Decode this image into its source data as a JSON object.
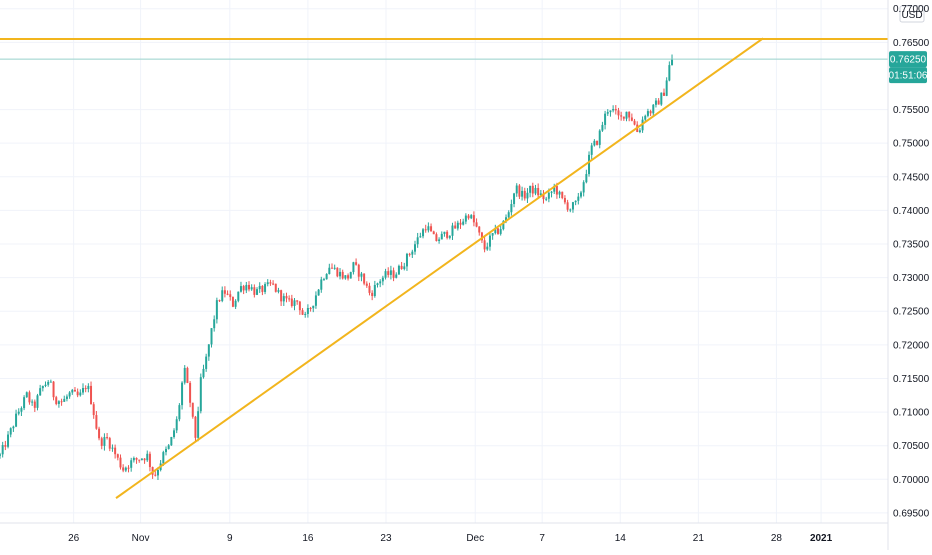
{
  "chart_data": {
    "type": "candlestick",
    "currency_label": "USD",
    "y_ticks": [
      "0.77000",
      "0.76500",
      "0.76250",
      "0.75500",
      "0.75000",
      "0.74500",
      "0.74000",
      "0.73500",
      "0.73000",
      "0.72500",
      "0.72000",
      "0.71500",
      "0.71000",
      "0.70500",
      "0.70000",
      "0.69500"
    ],
    "y_tick_values": [
      0.77,
      0.765,
      0.7625,
      0.755,
      0.75,
      0.745,
      0.74,
      0.735,
      0.73,
      0.725,
      0.72,
      0.715,
      0.71,
      0.705,
      0.7,
      0.695
    ],
    "ylim": [
      0.6935,
      0.7713
    ],
    "x_ticks": [
      "26",
      "Nov",
      "9",
      "16",
      "23",
      "Dec",
      "7",
      "14",
      "21",
      "28",
      "2021"
    ],
    "x_tick_days": [
      -6,
      0,
      8,
      15,
      22,
      30,
      36,
      43,
      50,
      57,
      61
    ],
    "xlim": [
      -12.6,
      67
    ],
    "current_price": "0.76250",
    "countdown": "01:51:06",
    "current_price_value": 0.7625,
    "colors": {
      "up": "#26a69a",
      "down": "#ef5350",
      "trendline": "#f2b51d",
      "price_label_bg": "#26a69a",
      "price_line": "#9ad3cc",
      "grid": "#f0f3fa",
      "axis_text": "#131722"
    },
    "horizontal_line": {
      "price": 0.7655
    },
    "trendline": {
      "from": {
        "day": -2.2,
        "price": 0.6972
      },
      "to": {
        "day": 55.8,
        "price": 0.7656
      }
    },
    "anchors": [
      [
        -12.6,
        0.7035
      ],
      [
        -11.8,
        0.7065
      ],
      [
        -11.1,
        0.7095
      ],
      [
        -10.2,
        0.7125
      ],
      [
        -9.6,
        0.7105
      ],
      [
        -8.9,
        0.7135
      ],
      [
        -8.2,
        0.7148
      ],
      [
        -7.7,
        0.712
      ],
      [
        -7.0,
        0.7115
      ],
      [
        -6.3,
        0.7128
      ],
      [
        -5.5,
        0.7122
      ],
      [
        -4.8,
        0.7142
      ],
      [
        -4.3,
        0.7108
      ],
      [
        -3.7,
        0.7055
      ],
      [
        -3.0,
        0.706
      ],
      [
        -2.2,
        0.7035
      ],
      [
        -1.6,
        0.7015
      ],
      [
        -0.9,
        0.7025
      ],
      [
        -0.3,
        0.703
      ],
      [
        0.6,
        0.7035
      ],
      [
        1.2,
        0.7003
      ],
      [
        2.0,
        0.7035
      ],
      [
        2.6,
        0.705
      ],
      [
        3.3,
        0.709
      ],
      [
        3.9,
        0.7165
      ],
      [
        4.4,
        0.712
      ],
      [
        4.9,
        0.706
      ],
      [
        5.4,
        0.7145
      ],
      [
        5.9,
        0.718
      ],
      [
        6.4,
        0.7225
      ],
      [
        6.9,
        0.7265
      ],
      [
        7.5,
        0.728
      ],
      [
        8.3,
        0.726
      ],
      [
        8.9,
        0.7285
      ],
      [
        9.6,
        0.729
      ],
      [
        10.3,
        0.7278
      ],
      [
        11.0,
        0.7283
      ],
      [
        11.8,
        0.729
      ],
      [
        12.5,
        0.7273
      ],
      [
        13.3,
        0.7262
      ],
      [
        14.1,
        0.7265
      ],
      [
        14.7,
        0.7238
      ],
      [
        15.5,
        0.7265
      ],
      [
        16.2,
        0.7296
      ],
      [
        16.9,
        0.7318
      ],
      [
        17.7,
        0.7308
      ],
      [
        18.5,
        0.7298
      ],
      [
        19.1,
        0.7318
      ],
      [
        19.8,
        0.7302
      ],
      [
        20.6,
        0.7275
      ],
      [
        21.4,
        0.7296
      ],
      [
        22.1,
        0.7305
      ],
      [
        22.8,
        0.7305
      ],
      [
        23.5,
        0.732
      ],
      [
        24.2,
        0.7338
      ],
      [
        25.0,
        0.7362
      ],
      [
        25.6,
        0.7378
      ],
      [
        26.4,
        0.7355
      ],
      [
        27.1,
        0.7362
      ],
      [
        27.9,
        0.737
      ],
      [
        28.6,
        0.738
      ],
      [
        29.4,
        0.7395
      ],
      [
        30.1,
        0.7375
      ],
      [
        30.8,
        0.7342
      ],
      [
        31.5,
        0.7362
      ],
      [
        32.2,
        0.7372
      ],
      [
        32.9,
        0.7392
      ],
      [
        33.6,
        0.7435
      ],
      [
        34.3,
        0.742
      ],
      [
        35.0,
        0.7432
      ],
      [
        35.7,
        0.7425
      ],
      [
        36.4,
        0.7415
      ],
      [
        37.1,
        0.7435
      ],
      [
        37.8,
        0.7415
      ],
      [
        38.5,
        0.7403
      ],
      [
        39.2,
        0.7412
      ],
      [
        39.9,
        0.7455
      ],
      [
        40.4,
        0.7492
      ],
      [
        41.0,
        0.7505
      ],
      [
        41.5,
        0.7535
      ],
      [
        42.0,
        0.7555
      ],
      [
        42.5,
        0.7545
      ],
      [
        43.0,
        0.7535
      ],
      [
        43.5,
        0.7548
      ],
      [
        44.0,
        0.7538
      ],
      [
        44.6,
        0.7515
      ],
      [
        45.2,
        0.7545
      ],
      [
        45.8,
        0.7548
      ],
      [
        46.4,
        0.7562
      ],
      [
        46.9,
        0.7575
      ],
      [
        47.4,
        0.7615
      ],
      [
        47.7,
        0.7625
      ]
    ]
  }
}
